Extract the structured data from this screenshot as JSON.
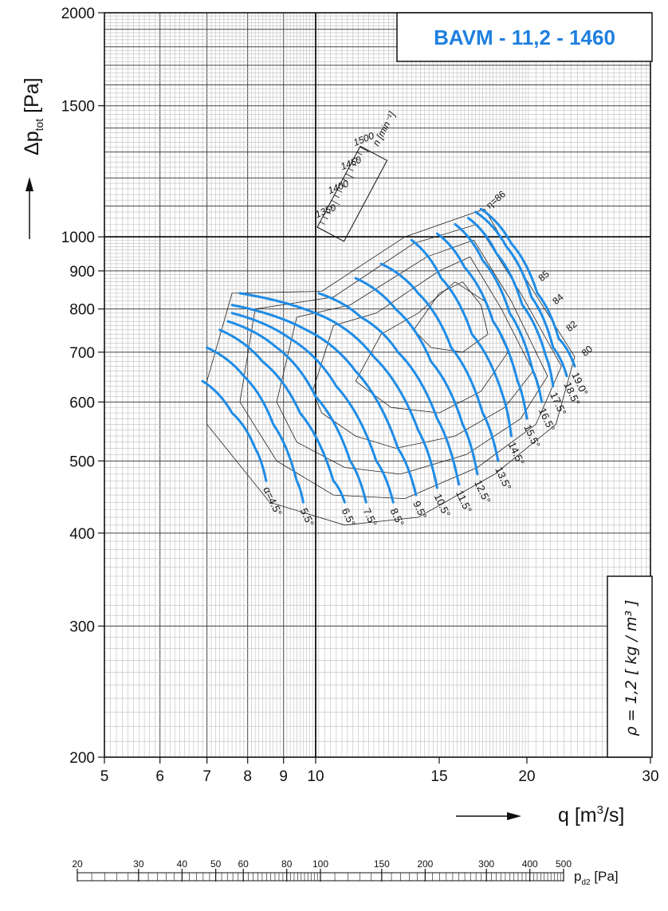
{
  "chart_data": {
    "type": "line",
    "title": "BAVM - 11,2 - 1460",
    "xlabel": "q [m³/s]",
    "ylabel": "Δp_tot [Pa]",
    "x_scale": "log",
    "y_scale": "log",
    "xlim": [
      5,
      30
    ],
    "ylim": [
      200,
      2000
    ],
    "x_ticks": [
      "5",
      "6",
      "7",
      "8",
      "9",
      "10",
      "15",
      "20",
      "30"
    ],
    "y_ticks": [
      "200",
      "300",
      "400",
      "500",
      "600",
      "700",
      "800",
      "900",
      "1000",
      "1500",
      "2000"
    ],
    "density_note": "ρ = 1,2 [ kg / m³ ]",
    "secondary_axis": {
      "label": "p_d2 [Pa]",
      "ticks": [
        "20",
        "30",
        "40",
        "50",
        "60",
        "80",
        "100",
        "150",
        "200",
        "300",
        "400",
        "500"
      ]
    },
    "speed_scale": {
      "label": "n [min⁻¹]",
      "ticks": [
        "1350",
        "1400",
        "1450",
        "1500"
      ]
    },
    "grid": true,
    "series": [
      {
        "name": "α=4.5°",
        "label": "α=4.5°",
        "points": [
          [
            6.9,
            640
          ],
          [
            7.6,
            580
          ],
          [
            8.2,
            520
          ],
          [
            8.5,
            470
          ]
        ]
      },
      {
        "name": "5.5°",
        "label": "5.5°",
        "points": [
          [
            7.0,
            710
          ],
          [
            7.9,
            650
          ],
          [
            8.7,
            560
          ],
          [
            9.4,
            470
          ],
          [
            9.6,
            440
          ]
        ]
      },
      {
        "name": "6.5°",
        "label": "6.5°",
        "points": [
          [
            7.3,
            750
          ],
          [
            8.4,
            680
          ],
          [
            9.5,
            580
          ],
          [
            10.6,
            470
          ],
          [
            11.0,
            440
          ]
        ]
      },
      {
        "name": "7.5°",
        "label": "7.5°",
        "points": [
          [
            7.5,
            770
          ],
          [
            8.8,
            710
          ],
          [
            10.0,
            610
          ],
          [
            11.2,
            500
          ],
          [
            11.8,
            440
          ]
        ]
      },
      {
        "name": "8.5°",
        "label": "8.5°",
        "points": [
          [
            7.6,
            790
          ],
          [
            9.2,
            730
          ],
          [
            10.7,
            630
          ],
          [
            12.2,
            500
          ],
          [
            12.9,
            440
          ]
        ]
      },
      {
        "name": "9.5°",
        "label": "9.5°",
        "points": [
          [
            7.6,
            810
          ],
          [
            9.7,
            750
          ],
          [
            11.4,
            660
          ],
          [
            13.1,
            520
          ],
          [
            13.9,
            450
          ]
        ]
      },
      {
        "name": "10.5°",
        "label": "10.5°",
        "points": [
          [
            7.8,
            840
          ],
          [
            10.3,
            780
          ],
          [
            12.1,
            690
          ],
          [
            14.0,
            550
          ],
          [
            14.9,
            460
          ]
        ]
      },
      {
        "name": "11.5°",
        "label": "11.5°",
        "points": [
          [
            10.1,
            840
          ],
          [
            11.6,
            780
          ],
          [
            13.1,
            700
          ],
          [
            14.9,
            570
          ],
          [
            16.0,
            465
          ]
        ]
      },
      {
        "name": "12.5°",
        "label": "12.5°",
        "points": [
          [
            11.4,
            880
          ],
          [
            13.0,
            800
          ],
          [
            14.6,
            680
          ],
          [
            16.2,
            560
          ],
          [
            17.0,
            480
          ]
        ]
      },
      {
        "name": "13.5°",
        "label": "13.5°",
        "points": [
          [
            12.4,
            920
          ],
          [
            14.0,
            840
          ],
          [
            15.6,
            710
          ],
          [
            17.3,
            580
          ],
          [
            18.2,
            500
          ]
        ]
      },
      {
        "name": "14.5°",
        "label": "14.5°",
        "points": [
          [
            13.7,
            990
          ],
          [
            15.1,
            880
          ],
          [
            16.7,
            740
          ],
          [
            18.5,
            610
          ],
          [
            19.0,
            540
          ]
        ]
      },
      {
        "name": "15.5°",
        "label": "15.5°",
        "points": [
          [
            14.9,
            1010
          ],
          [
            16.3,
            910
          ],
          [
            17.9,
            770
          ],
          [
            19.4,
            640
          ],
          [
            20.0,
            570
          ]
        ]
      },
      {
        "name": "16.5°",
        "label": "16.5°",
        "points": [
          [
            15.8,
            1040
          ],
          [
            17.3,
            930
          ],
          [
            18.9,
            790
          ],
          [
            20.4,
            660
          ],
          [
            21.0,
            600
          ]
        ]
      },
      {
        "name": "17.5°",
        "label": "17.5°",
        "points": [
          [
            16.5,
            1060
          ],
          [
            18.1,
            950
          ],
          [
            19.7,
            810
          ],
          [
            21.3,
            690
          ],
          [
            21.8,
            630
          ]
        ]
      },
      {
        "name": "18.5°",
        "label": "18.5°",
        "points": [
          [
            16.9,
            1080
          ],
          [
            18.7,
            970
          ],
          [
            20.3,
            830
          ],
          [
            21.8,
            710
          ],
          [
            22.8,
            650
          ]
        ]
      },
      {
        "name": "19.0°",
        "label": "19.0°",
        "points": [
          [
            17.2,
            1090
          ],
          [
            19.0,
            980
          ],
          [
            20.7,
            840
          ],
          [
            22.2,
            730
          ],
          [
            23.4,
            670
          ]
        ]
      }
    ],
    "efficiency_labels": [
      "η=86",
      "85",
      "84",
      "82",
      "80"
    ]
  }
}
